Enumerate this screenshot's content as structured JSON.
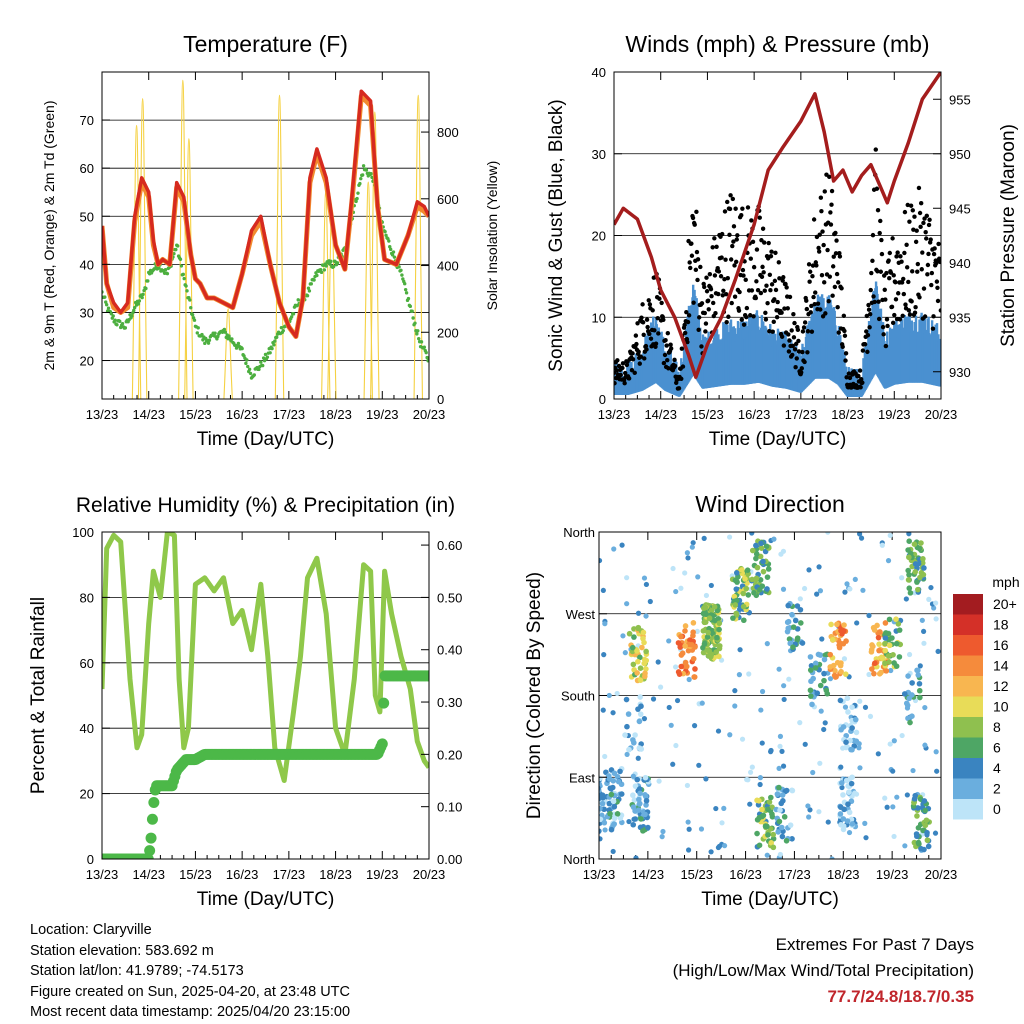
{
  "x_ticks": [
    "13/23",
    "14/23",
    "15/23",
    "16/23",
    "17/23",
    "18/23",
    "19/23",
    "20/23"
  ],
  "xlabel": "Time (Day/UTC)",
  "colors": {
    "temp2m": "#d62a1f",
    "temp9m": "#f28a2e",
    "dewpoint": "#4caf3f",
    "solar": "#f5d142",
    "gust": "#000000",
    "wind": "#4a90d0",
    "pressure": "#a41d1d",
    "rh": "#8fc84a",
    "precip": "#4cb848",
    "extreme_text": "#c0262c"
  },
  "chart_data": [
    {
      "type": "line",
      "title": "Temperature (F)",
      "xlabel": "Time (Day/UTC)",
      "ylabel": "2m & 9m T (Red, Orange) & 2m Td (Green)",
      "y2label": "Solar Insolation (Yellow)",
      "x_ticks": [
        "13/23",
        "14/23",
        "15/23",
        "16/23",
        "17/23",
        "18/23",
        "19/23",
        "20/23"
      ],
      "ylim": [
        12,
        80
      ],
      "y_ticks": [
        20,
        30,
        40,
        50,
        60,
        70
      ],
      "y2lim": [
        0,
        980
      ],
      "y2_ticks": [
        0,
        200,
        400,
        600,
        800
      ],
      "series": [
        {
          "id": "temp2m",
          "x": [
            0,
            0.1,
            0.25,
            0.4,
            0.55,
            0.7,
            0.85,
            1.0,
            1.1,
            1.2,
            1.3,
            1.45,
            1.6,
            1.75,
            1.9,
            2.0,
            2.1,
            2.25,
            2.4,
            2.6,
            2.8,
            3.0,
            3.2,
            3.4,
            3.6,
            3.8,
            4.0,
            4.15,
            4.3,
            4.45,
            4.6,
            4.8,
            5.0,
            5.2,
            5.35,
            5.55,
            5.75,
            5.9,
            6.05,
            6.3,
            6.55,
            6.75,
            6.9,
            7.0
          ],
          "y": [
            48,
            36,
            32,
            30,
            32,
            50,
            58,
            55,
            45,
            40,
            41,
            40,
            57,
            54,
            42,
            37,
            36,
            33,
            33,
            32,
            31,
            38,
            47,
            50,
            40,
            32,
            27,
            25,
            33,
            58,
            64,
            58,
            44,
            39,
            54,
            76,
            74,
            52,
            41,
            40,
            46,
            53,
            52,
            50
          ]
        },
        {
          "id": "temp9m",
          "x": [
            0,
            0.1,
            0.25,
            0.4,
            0.55,
            0.7,
            0.85,
            1.0,
            1.1,
            1.2,
            1.3,
            1.45,
            1.6,
            1.75,
            1.9,
            2.0,
            2.1,
            2.25,
            2.4,
            2.6,
            2.8,
            3.0,
            3.2,
            3.4,
            3.6,
            3.8,
            4.0,
            4.15,
            4.3,
            4.45,
            4.6,
            4.8,
            5.0,
            5.2,
            5.35,
            5.55,
            5.75,
            5.9,
            6.05,
            6.3,
            6.55,
            6.75,
            6.9,
            7.0
          ],
          "y": [
            48,
            36,
            31,
            30,
            31,
            49,
            57,
            54,
            44,
            40,
            41,
            40,
            56,
            53,
            42,
            37,
            36,
            33,
            33,
            32,
            31,
            38,
            46,
            49,
            40,
            32,
            27,
            25,
            33,
            57,
            63,
            57,
            44,
            39,
            53,
            75,
            73,
            52,
            41,
            40,
            46,
            52,
            51,
            50
          ]
        },
        {
          "id": "dewpoint",
          "x": [
            0,
            0.15,
            0.3,
            0.5,
            0.7,
            0.9,
            1.0,
            1.2,
            1.4,
            1.6,
            1.8,
            2.0,
            2.2,
            2.4,
            2.6,
            2.8,
            3.0,
            3.2,
            3.4,
            3.6,
            3.8,
            4.0,
            4.2,
            4.4,
            4.6,
            4.8,
            5.0,
            5.2,
            5.4,
            5.6,
            5.8,
            6.0,
            6.2,
            6.4,
            6.6,
            6.8,
            7.0
          ],
          "y": [
            34,
            30,
            28,
            27,
            31,
            34,
            38,
            40,
            38,
            44,
            35,
            27,
            24,
            25,
            26,
            24,
            22,
            17,
            19,
            22,
            26,
            28,
            32,
            34,
            38,
            40,
            40,
            43,
            52,
            60,
            58,
            48,
            43,
            38,
            31,
            24,
            20
          ]
        },
        {
          "id": "solar",
          "peaks": [
            {
              "x": 0.74,
              "y": 820
            },
            {
              "x": 0.87,
              "y": 900
            },
            {
              "x": 1.73,
              "y": 955
            },
            {
              "x": 1.86,
              "y": 780
            },
            {
              "x": 2.7,
              "y": 270
            },
            {
              "x": 3.8,
              "y": 910
            },
            {
              "x": 4.79,
              "y": 620
            },
            {
              "x": 4.92,
              "y": 570
            },
            {
              "x": 5.7,
              "y": 650
            },
            {
              "x": 5.84,
              "y": 860
            },
            {
              "x": 6.77,
              "y": 910
            }
          ]
        }
      ]
    },
    {
      "type": "scatter",
      "title": "Winds (mph) & Pressure (mb)",
      "xlabel": "Time (Day/UTC)",
      "ylabel": "Sonic Wind & Gust (Blue, Black)",
      "y2label": "Station Pressure (Maroon)",
      "x_ticks": [
        "13/23",
        "14/23",
        "15/23",
        "16/23",
        "17/23",
        "18/23",
        "19/23",
        "20/23"
      ],
      "ylim": [
        0,
        40
      ],
      "y_ticks": [
        0,
        10,
        20,
        30,
        40
      ],
      "y2lim": [
        927.5,
        957.5
      ],
      "y2_ticks": [
        930,
        935,
        940,
        945,
        950,
        955
      ],
      "series": [
        {
          "id": "gust_envelope",
          "x": [
            0,
            0.3,
            0.6,
            0.9,
            1.1,
            1.4,
            1.7,
            1.9,
            2.2,
            2.5,
            2.8,
            3.1,
            3.4,
            3.7,
            4.0,
            4.3,
            4.6,
            4.8,
            5.0,
            5.3,
            5.6,
            5.8,
            6.0,
            6.3,
            6.6,
            7.0
          ],
          "y": [
            4,
            4,
            10,
            14,
            8,
            2,
            24,
            12,
            18,
            22,
            20,
            20,
            16,
            12,
            6,
            20,
            24,
            18,
            3,
            3,
            26,
            12,
            18,
            20,
            22,
            16
          ]
        },
        {
          "id": "wind_envelope",
          "x": [
            0,
            0.3,
            0.6,
            0.9,
            1.1,
            1.4,
            1.7,
            1.9,
            2.2,
            2.5,
            2.8,
            3.1,
            3.4,
            3.7,
            4.0,
            4.3,
            4.6,
            4.8,
            5.0,
            5.3,
            5.6,
            5.8,
            6.0,
            6.3,
            6.6,
            7.0
          ],
          "y": [
            2,
            2,
            4,
            8,
            4,
            1,
            12,
            5,
            6,
            7,
            7,
            8,
            6,
            5,
            3,
            10,
            10,
            7,
            1,
            1,
            13,
            5,
            7,
            8,
            8,
            6
          ]
        },
        {
          "id": "pressure",
          "x": [
            0,
            0.2,
            0.5,
            0.8,
            1.0,
            1.3,
            1.6,
            1.75,
            2.0,
            2.3,
            2.6,
            3.0,
            3.3,
            3.6,
            4.0,
            4.3,
            4.5,
            4.7,
            4.9,
            5.1,
            5.3,
            5.5,
            5.7,
            5.85,
            6.0,
            6.3,
            6.6,
            7.0
          ],
          "y": [
            943.5,
            945,
            944,
            940.5,
            937.5,
            935,
            931.5,
            929.5,
            932.5,
            935,
            938.5,
            943.5,
            948.5,
            950.5,
            953,
            955.5,
            952,
            947.5,
            948.5,
            946.5,
            948,
            949,
            947,
            945.5,
            947.5,
            951,
            955,
            957.5
          ]
        }
      ]
    },
    {
      "type": "line",
      "title": "Relative Humidity (%) & Precipitation (in)",
      "xlabel": "Time (Day/UTC)",
      "ylabel": "Percent & Total Rainfall",
      "x_ticks": [
        "13/23",
        "14/23",
        "15/23",
        "16/23",
        "17/23",
        "18/23",
        "19/23",
        "20/23"
      ],
      "ylim": [
        0,
        100
      ],
      "y_ticks": [
        0,
        20,
        40,
        60,
        80,
        100
      ],
      "y2lim": [
        0,
        0.625
      ],
      "y2_ticks": [
        "0.00",
        "0.10",
        "0.20",
        "0.30",
        "0.40",
        "0.50",
        "0.60"
      ],
      "series": [
        {
          "id": "rh",
          "x": [
            0,
            0.1,
            0.25,
            0.4,
            0.6,
            0.75,
            0.85,
            1.0,
            1.1,
            1.25,
            1.4,
            1.55,
            1.65,
            1.75,
            1.85,
            2.0,
            2.2,
            2.4,
            2.6,
            2.8,
            3.0,
            3.2,
            3.4,
            3.55,
            3.7,
            3.9,
            4.1,
            4.25,
            4.4,
            4.6,
            4.8,
            5.0,
            5.2,
            5.4,
            5.6,
            5.75,
            5.85,
            5.95,
            6.05,
            6.2,
            6.4,
            6.6,
            6.75,
            6.9,
            7.0
          ],
          "y": [
            52,
            95,
            99,
            97,
            55,
            34,
            38,
            72,
            88,
            80,
            100,
            99,
            55,
            34,
            40,
            84,
            86,
            82,
            86,
            72,
            76,
            64,
            84,
            62,
            34,
            24,
            45,
            62,
            86,
            92,
            75,
            40,
            32,
            55,
            90,
            88,
            50,
            45,
            88,
            75,
            62,
            52,
            36,
            30,
            28
          ]
        },
        {
          "id": "precip",
          "x": [
            0,
            0.5,
            1.0,
            1.05,
            1.1,
            1.15,
            1.3,
            1.5,
            1.6,
            1.8,
            2.0,
            2.2,
            2.6,
            3.0,
            3.5,
            4.0,
            4.5,
            5.0,
            5.5,
            5.9,
            6.0,
            6.05,
            7.0
          ],
          "y": [
            0,
            0,
            0,
            0.04,
            0.1,
            0.14,
            0.14,
            0.14,
            0.17,
            0.19,
            0.19,
            0.2,
            0.2,
            0.2,
            0.2,
            0.2,
            0.2,
            0.2,
            0.2,
            0.2,
            0.22,
            0.35,
            0.35
          ]
        }
      ]
    },
    {
      "type": "scatter",
      "title": "Wind Direction",
      "xlabel": "Time (Day/UTC)",
      "ylabel": "Direction (Colored By Speed)",
      "x_ticks": [
        "13/23",
        "14/23",
        "15/23",
        "16/23",
        "17/23",
        "18/23",
        "19/23",
        "20/23"
      ],
      "y_ticks": [
        "North",
        "East",
        "South",
        "West",
        "North"
      ],
      "colorbar": {
        "title": "mph",
        "labels": [
          "20+",
          "18",
          "16",
          "14",
          "12",
          "10",
          "8",
          "6",
          "4",
          "2",
          "0"
        ],
        "colors": [
          "#a31c20",
          "#d43028",
          "#ee5a2e",
          "#f58b3c",
          "#f8b650",
          "#e8dc58",
          "#8fc04f",
          "#4ea665",
          "#3a84c0",
          "#6aaede",
          "#bde4f8"
        ]
      },
      "clusters": [
        {
          "x": 0.15,
          "dir": 60,
          "n": 40,
          "spd": 2
        },
        {
          "x": 0.3,
          "dir": 70,
          "n": 30,
          "spd": 3
        },
        {
          "x": 0.8,
          "dir": 225,
          "n": 45,
          "spd": 9
        },
        {
          "x": 0.85,
          "dir": 60,
          "n": 50,
          "spd": 3
        },
        {
          "x": 0.7,
          "dir": 150,
          "n": 20,
          "spd": 1
        },
        {
          "x": 1.8,
          "dir": 230,
          "n": 40,
          "spd": 14
        },
        {
          "x": 2.3,
          "dir": 250,
          "n": 120,
          "spd": 8
        },
        {
          "x": 2.9,
          "dir": 290,
          "n": 60,
          "spd": 7
        },
        {
          "x": 3.3,
          "dir": 320,
          "n": 50,
          "spd": 6
        },
        {
          "x": 3.4,
          "dir": 40,
          "n": 45,
          "spd": 7
        },
        {
          "x": 3.8,
          "dir": 50,
          "n": 30,
          "spd": 3
        },
        {
          "x": 4.0,
          "dir": 260,
          "n": 25,
          "spd": 4
        },
        {
          "x": 4.5,
          "dir": 200,
          "n": 30,
          "spd": 4
        },
        {
          "x": 4.9,
          "dir": 230,
          "n": 40,
          "spd": 13
        },
        {
          "x": 5.1,
          "dir": 60,
          "n": 40,
          "spd": 1
        },
        {
          "x": 5.1,
          "dir": 150,
          "n": 30,
          "spd": 1
        },
        {
          "x": 5.75,
          "dir": 230,
          "n": 40,
          "spd": 13
        },
        {
          "x": 6.0,
          "dir": 240,
          "n": 30,
          "spd": 7
        },
        {
          "x": 6.5,
          "dir": 320,
          "n": 50,
          "spd": 6
        },
        {
          "x": 6.6,
          "dir": 40,
          "n": 45,
          "spd": 6
        },
        {
          "x": 6.4,
          "dir": 180,
          "n": 20,
          "spd": 4
        }
      ]
    }
  ],
  "info": {
    "location": "Location: Claryville",
    "elevation": "Station elevation: 583.692 m",
    "latlon": "Station lat/lon: 41.9789; -74.5173",
    "created": "Figure created on Sun, 2025-04-20, at 23:48 UTC",
    "recent": "Most recent data timestamp: 2025/04/20 23:15:00"
  },
  "extremes": {
    "title": "Extremes For Past 7 Days",
    "subtitle": "(High/Low/Max Wind/Total Precipitation)",
    "values": "77.7/24.8/18.7/0.35"
  }
}
